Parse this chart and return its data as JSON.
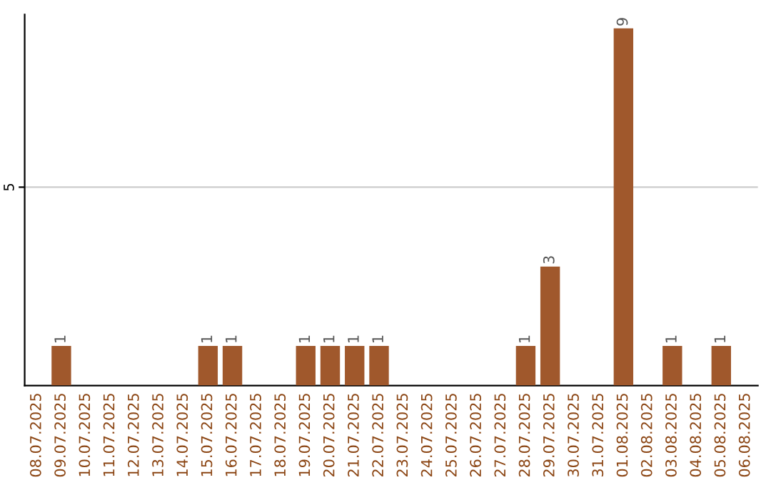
{
  "chart_data": {
    "type": "bar",
    "categories": [
      "08.07.2025",
      "09.07.2025",
      "10.07.2025",
      "11.07.2025",
      "12.07.2025",
      "13.07.2025",
      "14.07.2025",
      "15.07.2025",
      "16.07.2025",
      "17.07.2025",
      "18.07.2025",
      "19.07.2025",
      "20.07.2025",
      "21.07.2025",
      "22.07.2025",
      "23.07.2025",
      "24.07.2025",
      "25.07.2025",
      "26.07.2025",
      "27.07.2025",
      "28.07.2025",
      "29.07.2025",
      "30.07.2025",
      "31.07.2025",
      "01.08.2025",
      "02.08.2025",
      "03.08.2025",
      "04.08.2025",
      "05.08.2025",
      "06.08.2025"
    ],
    "values": [
      0,
      1,
      0,
      0,
      0,
      0,
      0,
      1,
      1,
      0,
      0,
      1,
      1,
      1,
      1,
      0,
      0,
      0,
      0,
      0,
      1,
      3,
      0,
      0,
      9,
      0,
      1,
      0,
      1,
      0
    ],
    "value_labels": [
      null,
      "1",
      null,
      null,
      null,
      null,
      null,
      "1",
      "1",
      null,
      null,
      "1",
      "1",
      "1",
      "1",
      null,
      null,
      null,
      null,
      null,
      "1",
      "3",
      null,
      null,
      "9",
      null,
      "1",
      null,
      "1",
      null
    ],
    "color": "#a0582c",
    "ylim": [
      0,
      9.35
    ],
    "yticks": [
      5
    ],
    "grid": "y"
  }
}
